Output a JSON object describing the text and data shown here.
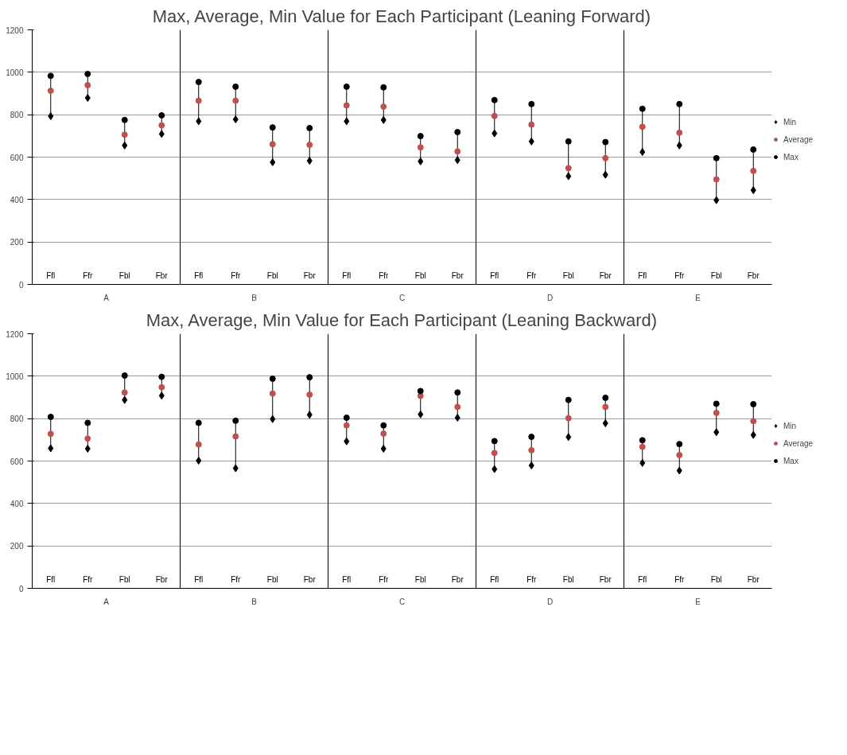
{
  "chart_data": [
    {
      "type": "scatter",
      "title": "Max, Average, Min Value for Each Participant (Leaning Forward)",
      "categories": [
        "Ffl",
        "Ffr",
        "Fbl",
        "Fbr",
        "Ffl",
        "Ffr",
        "Fbl",
        "Fbr",
        "Ffl",
        "Ffr",
        "Fbl",
        "Fbr",
        "Ffl",
        "Ffr",
        "Fbl",
        "Fbr",
        "Ffl",
        "Ffr",
        "Fbl",
        "Fbr"
      ],
      "annotations": [
        "A",
        "B",
        "C",
        "D",
        "E"
      ],
      "ylim": [
        0,
        1200
      ],
      "yticks": [
        0,
        200,
        400,
        600,
        800,
        1000,
        1200
      ],
      "grid": "y",
      "legend": "right",
      "series": [
        {
          "name": "Min",
          "color": "#000000",
          "marker": "diamond",
          "values": [
            793,
            879,
            655,
            709,
            769,
            778,
            576,
            583,
            769,
            775,
            580,
            586,
            712,
            674,
            510,
            517,
            624,
            655,
            397,
            444
          ]
        },
        {
          "name": "Average",
          "color": "#c0504d",
          "marker": "circle",
          "values": [
            913,
            939,
            706,
            750,
            866,
            866,
            661,
            658,
            844,
            838,
            646,
            627,
            794,
            753,
            548,
            595,
            743,
            715,
            495,
            535
          ]
        },
        {
          "name": "Max",
          "color": "#000000",
          "marker": "circle",
          "values": [
            983,
            992,
            775,
            797,
            954,
            932,
            740,
            737,
            932,
            929,
            699,
            718,
            869,
            850,
            674,
            671,
            828,
            850,
            595,
            636
          ]
        }
      ]
    },
    {
      "type": "scatter",
      "title": "Max, Average, Min Value for Each Participant (Leaning Backward)",
      "categories": [
        "Ffl",
        "Ffr",
        "Fbl",
        "Fbr",
        "Ffl",
        "Ffr",
        "Fbl",
        "Fbr",
        "Ffl",
        "Ffr",
        "Fbl",
        "Fbr",
        "Ffl",
        "Ffr",
        "Fbl",
        "Fbr",
        "Ffl",
        "Ffr",
        "Fbl",
        "Fbr"
      ],
      "annotations": [
        "A",
        "B",
        "C",
        "D",
        "E"
      ],
      "ylim": [
        0,
        1200
      ],
      "yticks": [
        0,
        200,
        400,
        600,
        800,
        1000,
        1200
      ],
      "grid": "y",
      "legend": "right",
      "series": [
        {
          "name": "Min",
          "color": "#000000",
          "marker": "diamond",
          "values": [
            660,
            658,
            888,
            908,
            602,
            566,
            798,
            818,
            693,
            658,
            820,
            804,
            562,
            579,
            713,
            778,
            591,
            555,
            736,
            723
          ]
        },
        {
          "name": "Average",
          "color": "#c0504d",
          "marker": "circle",
          "values": [
            728,
            706,
            923,
            948,
            678,
            716,
            918,
            913,
            768,
            729,
            907,
            855,
            638,
            651,
            802,
            855,
            667,
            628,
            827,
            788
          ]
        },
        {
          "name": "Max",
          "color": "#000000",
          "marker": "circle",
          "values": [
            808,
            780,
            1003,
            997,
            780,
            790,
            988,
            995,
            804,
            768,
            930,
            923,
            694,
            714,
            888,
            898,
            698,
            680,
            870,
            868
          ]
        }
      ]
    }
  ]
}
